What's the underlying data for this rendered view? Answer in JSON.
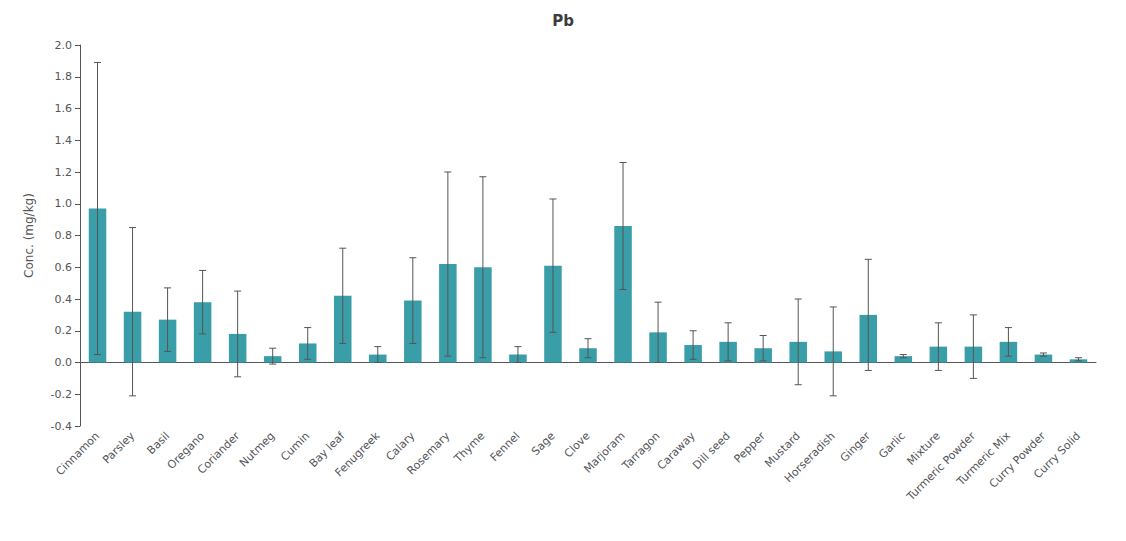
{
  "chart_data": {
    "type": "bar",
    "title": "Pb",
    "ylabel": "Conc. (mg/kg)",
    "categories": [
      "Cinnamon",
      "Parsley",
      "Basil",
      "Oregano",
      "Coriander",
      "Nutmeg",
      "Cumin",
      "Bay leaf",
      "Fenugreek",
      "Calary",
      "Rosemary",
      "Thyme",
      "Fennel",
      "Sage",
      "Clove",
      "Marjoram",
      "Tarragon",
      "Caraway",
      "Dill seed",
      "Pepper",
      "Mustard",
      "Horseradish",
      "Ginger",
      "Garlic",
      "Mixture",
      "Turmeric Powder",
      "Turmeric Mix",
      "Curry Powder",
      "Curry Solid"
    ],
    "values": [
      0.97,
      0.32,
      0.27,
      0.38,
      0.18,
      0.04,
      0.12,
      0.42,
      0.05,
      0.39,
      0.62,
      0.6,
      0.05,
      0.61,
      0.09,
      0.86,
      0.19,
      0.11,
      0.13,
      0.09,
      0.13,
      0.07,
      0.3,
      0.04,
      0.1,
      0.1,
      0.13,
      0.05,
      0.02
    ],
    "errors": [
      0.92,
      0.53,
      0.2,
      0.2,
      0.27,
      0.05,
      0.1,
      0.3,
      0.05,
      0.27,
      0.58,
      0.57,
      0.05,
      0.42,
      0.06,
      0.4,
      0.19,
      0.09,
      0.12,
      0.08,
      0.27,
      0.28,
      0.35,
      0.01,
      0.15,
      0.2,
      0.09,
      0.01,
      0.01
    ],
    "color": "#3a9ea8",
    "ylim": [
      -0.4,
      2.0
    ],
    "yticks": [
      -0.4,
      -0.2,
      {
        "value": 0,
        "label": "0.0"
      },
      0.2,
      0.4,
      0.6,
      0.8,
      {
        "value": 1.0,
        "label": "1.0"
      },
      1.2,
      1.4,
      1.6,
      1.8,
      {
        "value": 2.0,
        "label": "2.0"
      }
    ],
    "grid": false
  }
}
